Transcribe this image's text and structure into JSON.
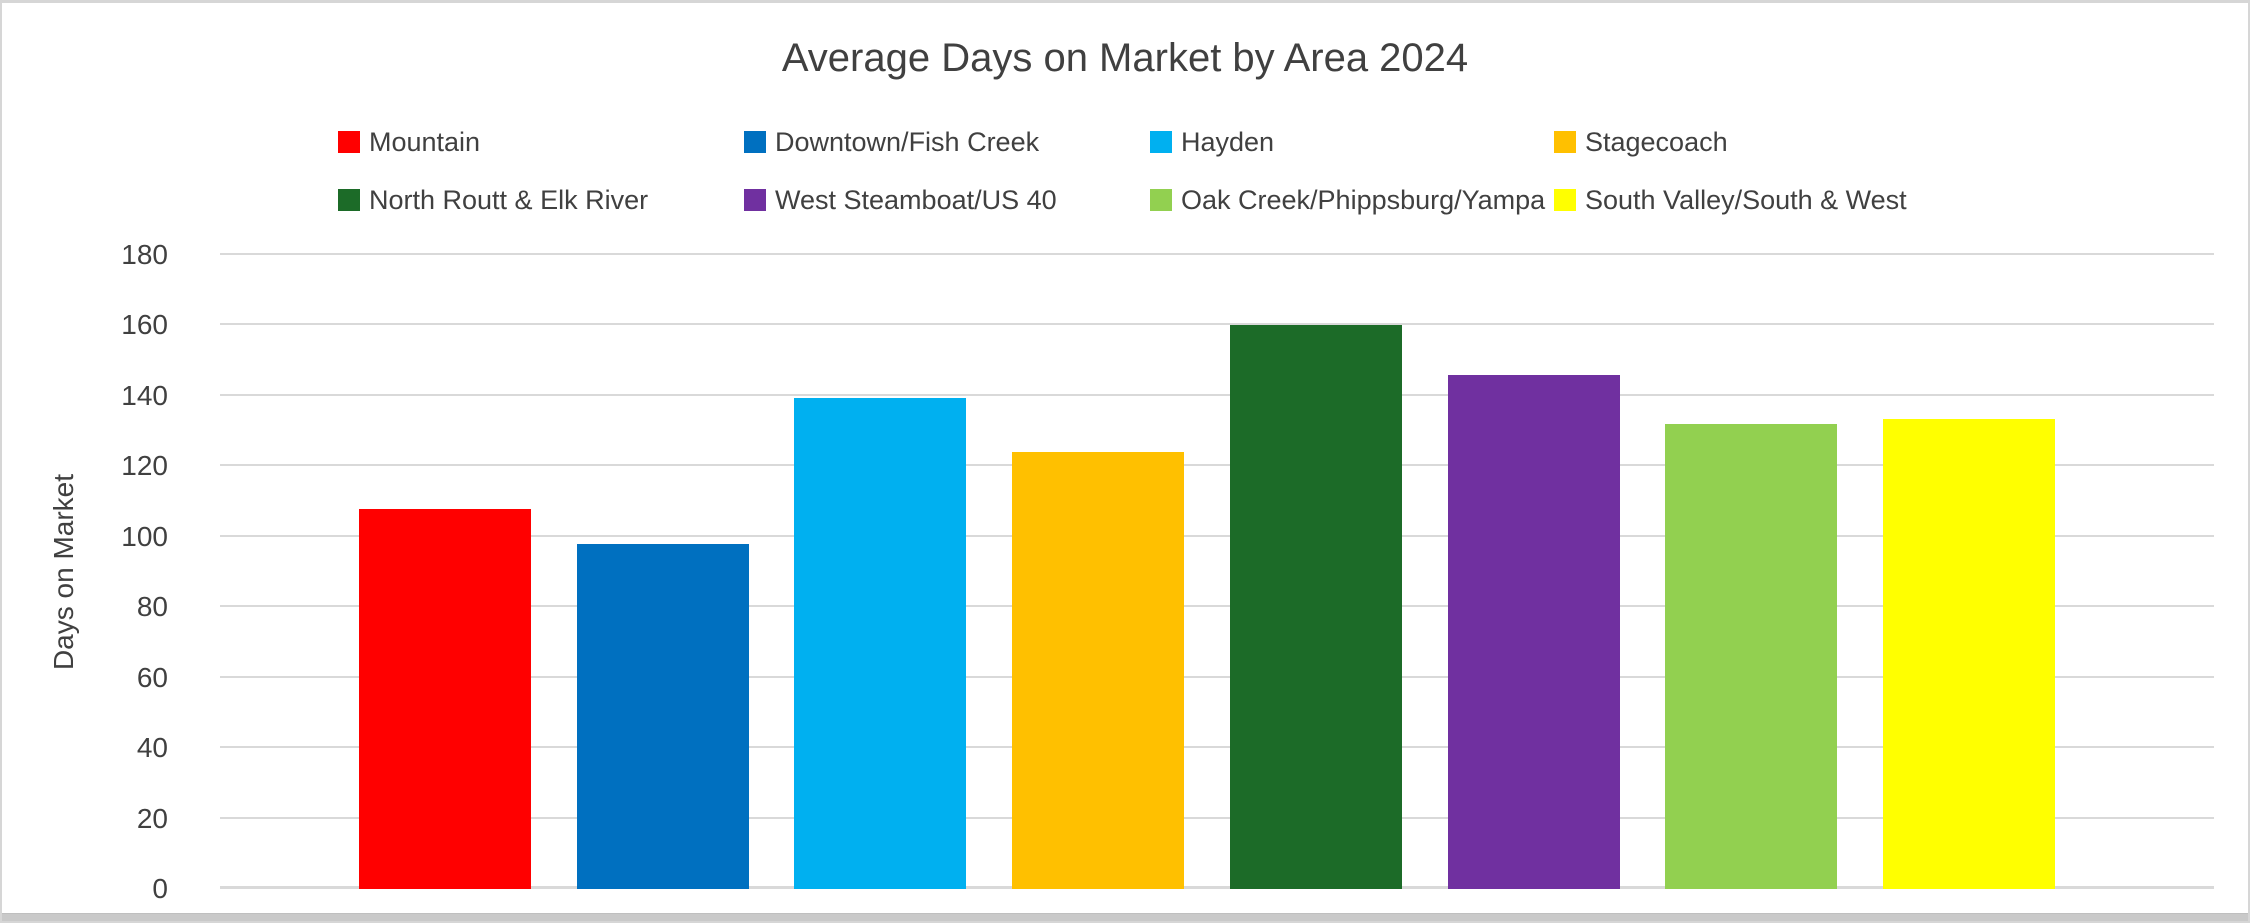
{
  "window": {
    "background": "#FFFFFF",
    "border_color": "#D6D6D6",
    "bottom_strip_color": "#C9C9C9"
  },
  "chart_data": {
    "type": "bar",
    "title": "Average Days on Market by Area 2024",
    "xlabel": "",
    "ylabel": "Days on Market",
    "ylim": [
      0,
      180
    ],
    "yticks": [
      0,
      20,
      40,
      60,
      80,
      100,
      120,
      140,
      160,
      180
    ],
    "grid": true,
    "gridline_color": "#D9D9D9",
    "text_color": "#404040",
    "legend_position": "top, two rows of four",
    "categories": [
      "Mountain",
      "Downtown/Fish Creek",
      "Hayden",
      "Stagecoach",
      "North Routt & Elk River",
      "West Steamboat/US 40",
      "Oak Creek/Phippsburg/Yampa",
      "South Valley/South & West"
    ],
    "values": [
      108,
      98,
      139.5,
      124,
      160,
      146,
      132,
      133.5
    ],
    "colors": [
      "#FF0000",
      "#0070C0",
      "#00B0F0",
      "#FFC000",
      "#1C6B28",
      "#7030A0",
      "#92D050",
      "#FFFF00"
    ]
  }
}
